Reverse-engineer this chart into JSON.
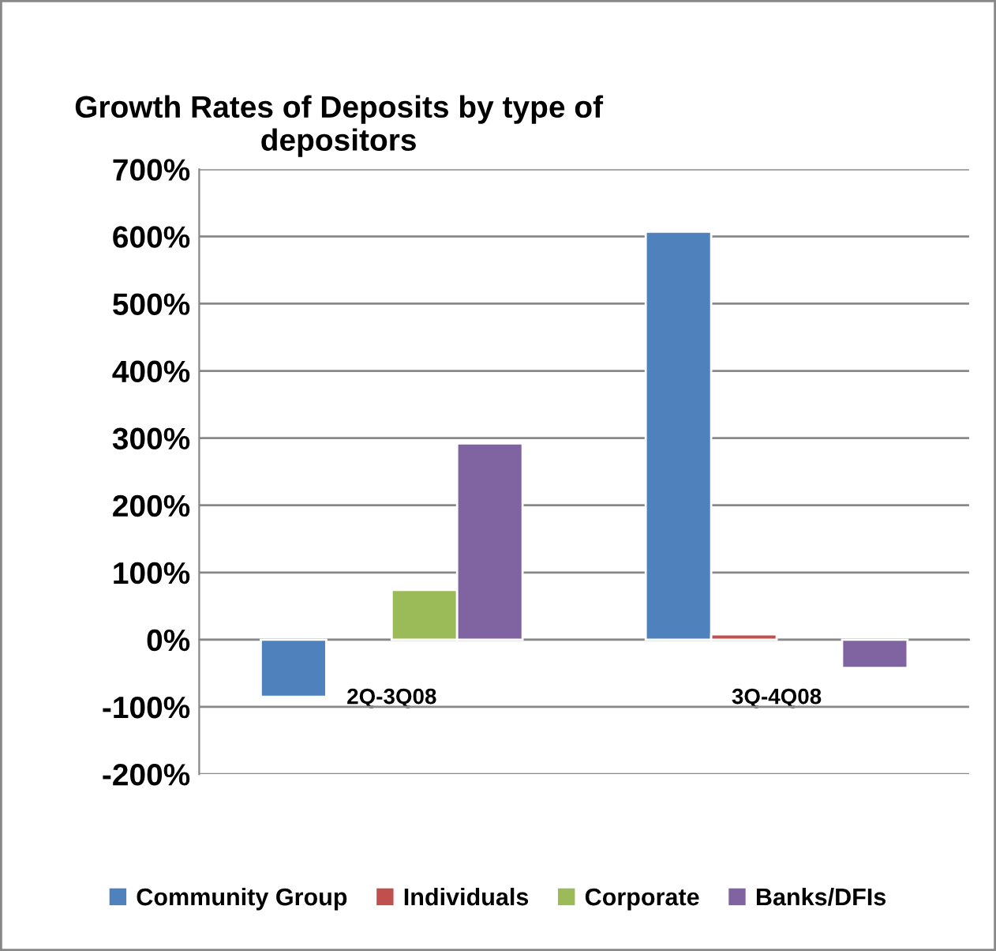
{
  "chart_data": {
    "type": "bar",
    "title": "Growth Rates of Deposits by type of depositors",
    "categories": [
      "2Q-3Q08",
      "3Q-4Q08"
    ],
    "series": [
      {
        "name": "Community Group",
        "color": "#4f81bd",
        "values": [
          -85,
          607
        ]
      },
      {
        "name": "Individuals",
        "color": "#c0504d",
        "values": [
          null,
          8
        ]
      },
      {
        "name": "Corporate",
        "color": "#9bbb59",
        "values": [
          74,
          null
        ]
      },
      {
        "name": "Banks/DFIs",
        "color": "#8064a2",
        "values": [
          292,
          -42
        ]
      }
    ],
    "ylim": [
      -200,
      700
    ],
    "yticks": [
      {
        "value": -200,
        "label": "-200%"
      },
      {
        "value": -100,
        "label": "-100%"
      },
      {
        "value": 0,
        "label": "0%"
      },
      {
        "value": 100,
        "label": "100%"
      },
      {
        "value": 200,
        "label": "200%"
      },
      {
        "value": 300,
        "label": "300%"
      },
      {
        "value": 400,
        "label": "400%"
      },
      {
        "value": 500,
        "label": "500%"
      },
      {
        "value": 600,
        "label": "600%"
      },
      {
        "value": 700,
        "label": "700%"
      }
    ],
    "grid": "y",
    "legend": "bottom"
  }
}
